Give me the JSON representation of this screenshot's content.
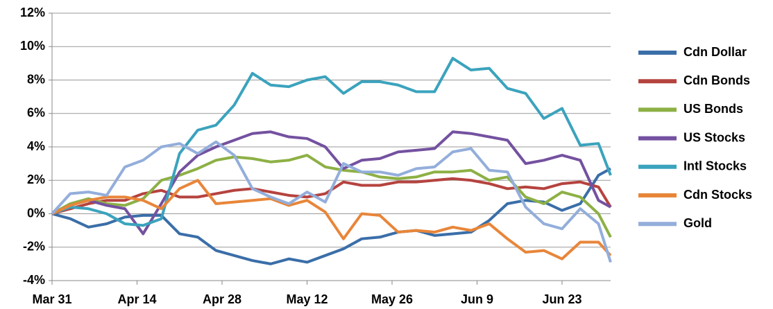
{
  "chart_data": {
    "type": "line",
    "x": [
      0,
      3,
      6,
      9,
      12,
      15,
      18,
      21,
      24,
      27,
      30,
      33,
      36,
      39,
      42,
      45,
      48,
      51,
      54,
      57,
      60,
      63,
      66,
      69,
      72,
      75,
      78,
      81,
      84,
      87,
      90,
      92
    ],
    "xlim": [
      0,
      92
    ],
    "xticks": [
      {
        "value": 0,
        "label": "Mar 31"
      },
      {
        "value": 14,
        "label": "Apr 14"
      },
      {
        "value": 28,
        "label": "Apr 28"
      },
      {
        "value": 42,
        "label": "May 12"
      },
      {
        "value": 56,
        "label": "May 26"
      },
      {
        "value": 70,
        "label": "Jun 9"
      },
      {
        "value": 84,
        "label": "Jun 23"
      }
    ],
    "ylim": [
      -4,
      12
    ],
    "yticks": [
      {
        "value": -4,
        "label": "-4%"
      },
      {
        "value": -2,
        "label": "-2%"
      },
      {
        "value": 0,
        "label": "0%"
      },
      {
        "value": 2,
        "label": "2%"
      },
      {
        "value": 4,
        "label": "4%"
      },
      {
        "value": 6,
        "label": "6%"
      },
      {
        "value": 8,
        "label": "8%"
      },
      {
        "value": 10,
        "label": "10%"
      },
      {
        "value": 12,
        "label": "12%"
      }
    ],
    "grid": true,
    "legend": "right",
    "series": [
      {
        "name": "Cdn Dollar",
        "color": "#3a6ea8",
        "values": [
          0,
          -0.3,
          -0.8,
          -0.6,
          -0.2,
          -0.1,
          -0.1,
          -1.2,
          -1.4,
          -2.2,
          -2.5,
          -2.8,
          -3.0,
          -2.7,
          -2.9,
          -2.5,
          -2.1,
          -1.5,
          -1.4,
          -1.1,
          -1.0,
          -1.3,
          -1.2,
          -1.1,
          -0.4,
          0.6,
          0.8,
          0.7,
          0.2,
          0.6,
          2.3,
          2.7
        ]
      },
      {
        "name": "Cdn Bonds",
        "color": "#b5433f",
        "values": [
          0,
          0.3,
          0.6,
          0.8,
          0.8,
          1.2,
          1.4,
          1.0,
          1.0,
          1.2,
          1.4,
          1.5,
          1.3,
          1.1,
          1.0,
          1.2,
          1.9,
          1.7,
          1.7,
          1.9,
          1.9,
          2.0,
          2.1,
          2.0,
          1.8,
          1.5,
          1.6,
          1.5,
          1.8,
          1.9,
          1.6,
          0.4
        ]
      },
      {
        "name": "US Bonds",
        "color": "#8db045",
        "values": [
          0,
          0.6,
          0.9,
          0.6,
          0.5,
          0.9,
          2.0,
          2.3,
          2.7,
          3.2,
          3.4,
          3.3,
          3.1,
          3.2,
          3.5,
          2.8,
          2.6,
          2.5,
          2.2,
          2.1,
          2.2,
          2.5,
          2.5,
          2.6,
          2.0,
          2.2,
          1.0,
          0.6,
          1.3,
          1.0,
          0.0,
          -1.4
        ]
      },
      {
        "name": "US Stocks",
        "color": "#7451a0",
        "values": [
          0,
          0.5,
          0.8,
          0.5,
          0.3,
          -1.2,
          0.6,
          2.5,
          3.5,
          4.0,
          4.4,
          4.8,
          4.9,
          4.6,
          4.5,
          4.0,
          2.7,
          3.2,
          3.3,
          3.7,
          3.8,
          3.9,
          4.9,
          4.8,
          4.6,
          4.4,
          3.0,
          3.2,
          3.5,
          3.2,
          0.8,
          0.4
        ]
      },
      {
        "name": "Intl Stocks",
        "color": "#3ba3bd",
        "values": [
          0,
          0.4,
          0.3,
          0.0,
          -0.6,
          -0.7,
          -0.3,
          3.6,
          5.0,
          5.3,
          6.5,
          8.4,
          7.7,
          7.6,
          8.0,
          8.2,
          7.2,
          7.9,
          7.9,
          7.7,
          7.3,
          7.3,
          9.3,
          8.6,
          8.7,
          7.5,
          7.2,
          5.7,
          6.3,
          4.1,
          4.2,
          2.3
        ]
      },
      {
        "name": "Cdn Stocks",
        "color": "#e8863a",
        "values": [
          0,
          0.5,
          0.8,
          1.0,
          1.0,
          0.8,
          0.3,
          1.5,
          2.0,
          0.6,
          0.7,
          0.8,
          0.9,
          0.5,
          0.8,
          0.1,
          -1.5,
          0.0,
          -0.1,
          -1.1,
          -1.0,
          -1.1,
          -0.8,
          -1.0,
          -0.6,
          -1.5,
          -2.3,
          -2.2,
          -2.7,
          -1.7,
          -1.7,
          -2.5
        ]
      },
      {
        "name": "Gold",
        "color": "#93aedb",
        "values": [
          0,
          1.2,
          1.3,
          1.1,
          2.8,
          3.2,
          4.0,
          4.2,
          3.6,
          4.3,
          3.5,
          1.5,
          1.0,
          0.6,
          1.3,
          0.7,
          3.0,
          2.5,
          2.5,
          2.3,
          2.7,
          2.8,
          3.7,
          3.9,
          2.6,
          2.5,
          0.4,
          -0.6,
          -0.9,
          0.3,
          -0.6,
          -2.9
        ]
      }
    ]
  }
}
